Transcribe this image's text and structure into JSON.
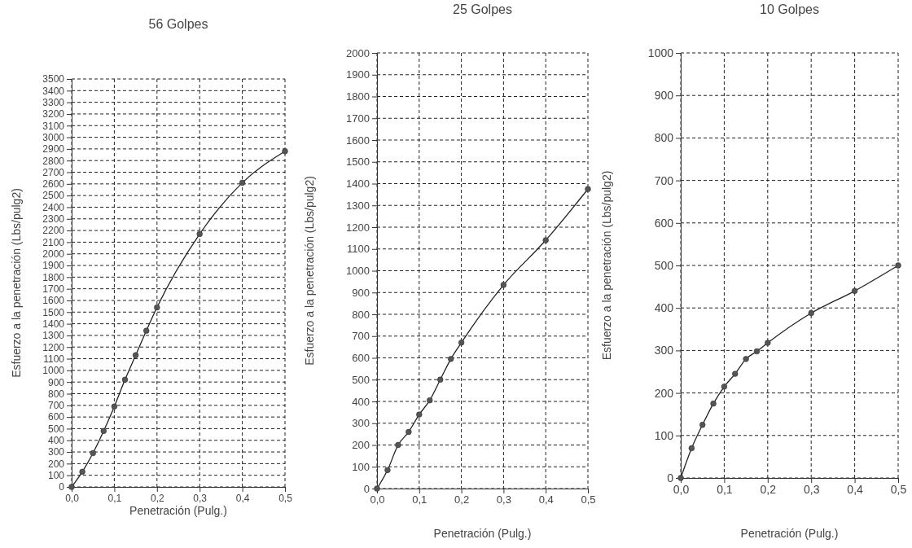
{
  "chart_data": [
    {
      "type": "line",
      "title": "56 Golpes",
      "xlabel": "Penetración (Pulg.)",
      "ylabel": "Esfuerzo a la penetración (Lbs/pulg2)",
      "x": [
        0,
        0.025,
        0.05,
        0.075,
        0.1,
        0.125,
        0.15,
        0.175,
        0.2,
        0.3,
        0.4,
        0.5
      ],
      "series": [
        {
          "color": "#555555",
          "values": [
            0,
            130,
            290,
            480,
            690,
            920,
            1130,
            1340,
            1540,
            2170,
            2610,
            2880
          ]
        }
      ],
      "xlim": [
        0,
        0.5
      ],
      "xticks": [
        {
          "value": 0,
          "label": "0,0"
        },
        {
          "value": 0.1,
          "label": "0,1"
        },
        {
          "value": 0.2,
          "label": "0,2"
        },
        {
          "value": 0.3,
          "label": "0,3"
        },
        {
          "value": 0.4,
          "label": "0,4"
        },
        {
          "value": 0.5,
          "label": "0,5"
        }
      ],
      "ylim": [
        0,
        3500
      ],
      "yticks": [
        0,
        100,
        200,
        300,
        400,
        500,
        600,
        700,
        800,
        900,
        1000,
        1100,
        1200,
        1300,
        1400,
        1500,
        1600,
        1700,
        1800,
        1900,
        2000,
        2100,
        2200,
        2300,
        2400,
        2500,
        2600,
        2700,
        2800,
        2900,
        3000,
        3100,
        3200,
        3300,
        3400,
        3500
      ],
      "grid": true,
      "marker": "circle",
      "line_style": "solid"
    },
    {
      "type": "line",
      "title": "25 Golpes",
      "xlabel": "Penetración (Pulg.)",
      "ylabel": "Esfuerzo a la penetración (Lbs/pulg2)",
      "x": [
        0,
        0.025,
        0.05,
        0.075,
        0.1,
        0.125,
        0.15,
        0.175,
        0.2,
        0.3,
        0.4,
        0.5
      ],
      "series": [
        {
          "color": "#555555",
          "values": [
            0,
            85,
            200,
            260,
            340,
            405,
            500,
            595,
            670,
            935,
            1140,
            1375
          ]
        }
      ],
      "xlim": [
        0,
        0.5
      ],
      "xticks": [
        {
          "value": 0,
          "label": "0,0"
        },
        {
          "value": 0.1,
          "label": "0,1"
        },
        {
          "value": 0.2,
          "label": "0,2"
        },
        {
          "value": 0.3,
          "label": "0,3"
        },
        {
          "value": 0.4,
          "label": "0,4"
        },
        {
          "value": 0.5,
          "label": "0,5"
        }
      ],
      "ylim": [
        0,
        2000
      ],
      "yticks": [
        0,
        100,
        200,
        300,
        400,
        500,
        600,
        700,
        800,
        900,
        1000,
        1100,
        1200,
        1300,
        1400,
        1500,
        1600,
        1700,
        1800,
        1900,
        2000
      ],
      "grid": true,
      "marker": "circle",
      "line_style": "solid"
    },
    {
      "type": "line",
      "title": "10 Golpes",
      "xlabel": "Penetración (Pulg.)",
      "ylabel": "Esfuerzo a la penetración (Lbs/pulg2)",
      "x": [
        0,
        0.025,
        0.05,
        0.075,
        0.1,
        0.125,
        0.15,
        0.175,
        0.2,
        0.3,
        0.4,
        0.5
      ],
      "series": [
        {
          "color": "#555555",
          "values": [
            0,
            70,
            125,
            175,
            215,
            245,
            280,
            298,
            318,
            388,
            440,
            500
          ]
        }
      ],
      "xlim": [
        0,
        0.5
      ],
      "xticks": [
        {
          "value": 0,
          "label": "0,0"
        },
        {
          "value": 0.1,
          "label": "0,1"
        },
        {
          "value": 0.2,
          "label": "0,2"
        },
        {
          "value": 0.3,
          "label": "0,3"
        },
        {
          "value": 0.4,
          "label": "0,4"
        },
        {
          "value": 0.5,
          "label": "0,5"
        }
      ],
      "ylim": [
        0,
        1000
      ],
      "yticks": [
        0,
        100,
        200,
        300,
        400,
        500,
        600,
        700,
        800,
        900,
        1000
      ],
      "grid": true,
      "marker": "circle",
      "line_style": "solid"
    }
  ]
}
